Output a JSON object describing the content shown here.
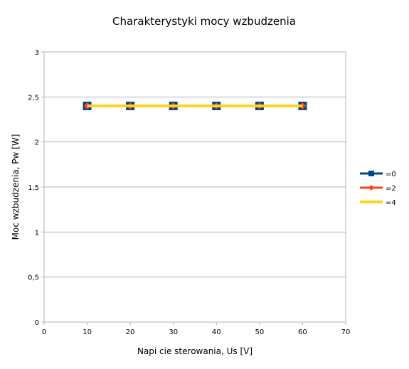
{
  "chart_data": {
    "type": "line",
    "title": "Charakterystyki mocy wzbudzenia",
    "xlabel": "Napi cie sterowania, Us [V]",
    "ylabel": "Moc wzbudzenia, Pw [W]",
    "xlim": [
      0,
      70
    ],
    "ylim": [
      0,
      3
    ],
    "x_ticks": [
      "0",
      "10",
      "20",
      "30",
      "40",
      "50",
      "60",
      "70"
    ],
    "y_ticks": [
      "0",
      "0,5",
      "1",
      "1,5",
      "2",
      "2,5",
      "3"
    ],
    "grid": "horizontal",
    "legend_position": "right",
    "x": [
      10,
      20,
      30,
      40,
      50,
      60
    ],
    "series": [
      {
        "name": "=0",
        "values": [
          2.4,
          2.4,
          2.4,
          2.4,
          2.4,
          2.4
        ],
        "color": "#004586",
        "marker": "square"
      },
      {
        "name": "=2",
        "values": [
          2.4,
          2.4,
          2.4,
          2.4,
          2.4,
          2.4
        ],
        "color": "#ff420e",
        "marker": "diamond"
      },
      {
        "name": "=4",
        "values": [
          2.4,
          2.4,
          2.4,
          2.4,
          2.4,
          2.4
        ],
        "color": "#ffd320",
        "marker": "none"
      }
    ]
  }
}
